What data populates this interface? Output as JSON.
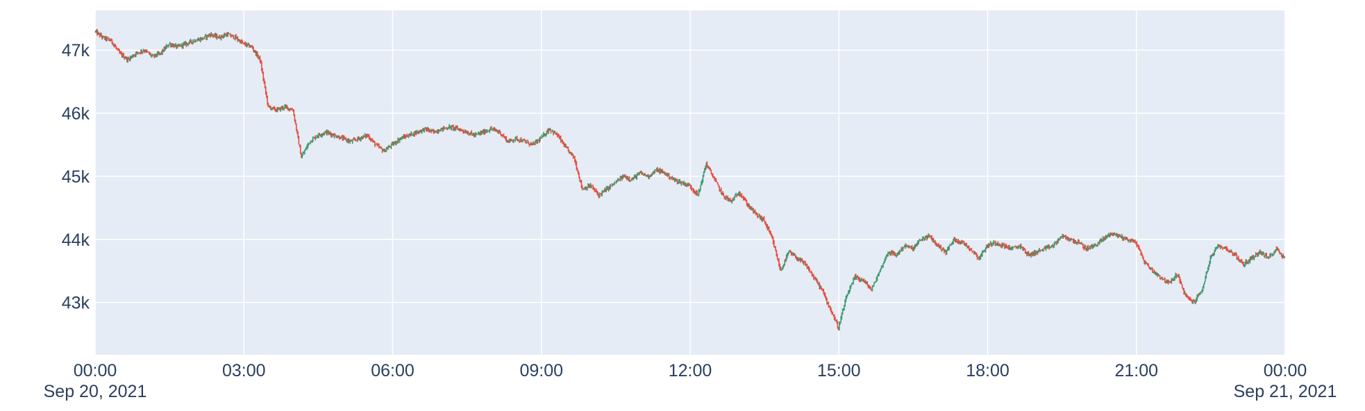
{
  "chart_data": {
    "type": "candlestick",
    "title": "",
    "xlabel": "",
    "ylabel": "",
    "x_range": [
      "2021-09-20 00:00",
      "2021-09-21 00:00"
    ],
    "y_range": [
      42170,
      47630
    ],
    "x_ticks": [
      {
        "time": "2021-09-20 00:00",
        "label": "00:00",
        "sublabel": "Sep 20, 2021"
      },
      {
        "time": "2021-09-20 03:00",
        "label": "03:00",
        "sublabel": ""
      },
      {
        "time": "2021-09-20 06:00",
        "label": "06:00",
        "sublabel": ""
      },
      {
        "time": "2021-09-20 09:00",
        "label": "09:00",
        "sublabel": ""
      },
      {
        "time": "2021-09-20 12:00",
        "label": "12:00",
        "sublabel": ""
      },
      {
        "time": "2021-09-20 15:00",
        "label": "15:00",
        "sublabel": ""
      },
      {
        "time": "2021-09-20 18:00",
        "label": "18:00",
        "sublabel": ""
      },
      {
        "time": "2021-09-20 21:00",
        "label": "21:00",
        "sublabel": ""
      },
      {
        "time": "2021-09-21 00:00",
        "label": "00:00",
        "sublabel": "Sep 21, 2021"
      }
    ],
    "y_ticks": [
      {
        "value": 43000,
        "label": "43k"
      },
      {
        "value": 44000,
        "label": "44k"
      },
      {
        "value": 45000,
        "label": "45k"
      },
      {
        "value": 46000,
        "label": "46k"
      },
      {
        "value": 47000,
        "label": "47k"
      }
    ],
    "grid": true,
    "colors": {
      "increasing": "#3d9970",
      "decreasing": "#e74c3c",
      "plot_bg": "#e5ecf6",
      "grid": "#ffffff",
      "text": "#2a3f5f"
    },
    "price_path": [
      [
        "00:00",
        47300
      ],
      [
        "00:10",
        47200
      ],
      [
        "00:20",
        47150
      ],
      [
        "00:30",
        46950
      ],
      [
        "00:40",
        46850
      ],
      [
        "00:50",
        46950
      ],
      [
        "01:00",
        47000
      ],
      [
        "01:10",
        46900
      ],
      [
        "01:20",
        46950
      ],
      [
        "01:30",
        47100
      ],
      [
        "01:40",
        47050
      ],
      [
        "01:50",
        47100
      ],
      [
        "02:00",
        47150
      ],
      [
        "02:10",
        47180
      ],
      [
        "02:20",
        47250
      ],
      [
        "02:30",
        47200
      ],
      [
        "02:40",
        47250
      ],
      [
        "02:50",
        47200
      ],
      [
        "03:00",
        47100
      ],
      [
        "03:10",
        47050
      ],
      [
        "03:20",
        46850
      ],
      [
        "03:30",
        46100
      ],
      [
        "03:40",
        46050
      ],
      [
        "03:50",
        46100
      ],
      [
        "04:00",
        46050
      ],
      [
        "04:10",
        45300
      ],
      [
        "04:20",
        45550
      ],
      [
        "04:30",
        45650
      ],
      [
        "04:40",
        45700
      ],
      [
        "04:50",
        45650
      ],
      [
        "05:00",
        45600
      ],
      [
        "05:10",
        45550
      ],
      [
        "05:20",
        45600
      ],
      [
        "05:30",
        45650
      ],
      [
        "05:40",
        45500
      ],
      [
        "05:50",
        45400
      ],
      [
        "06:00",
        45500
      ],
      [
        "06:10",
        45600
      ],
      [
        "06:20",
        45650
      ],
      [
        "06:30",
        45700
      ],
      [
        "06:40",
        45750
      ],
      [
        "06:50",
        45700
      ],
      [
        "07:00",
        45750
      ],
      [
        "07:10",
        45780
      ],
      [
        "07:20",
        45750
      ],
      [
        "07:30",
        45700
      ],
      [
        "07:40",
        45650
      ],
      [
        "07:50",
        45700
      ],
      [
        "08:00",
        45750
      ],
      [
        "08:10",
        45700
      ],
      [
        "08:20",
        45550
      ],
      [
        "08:30",
        45600
      ],
      [
        "08:40",
        45550
      ],
      [
        "08:50",
        45500
      ],
      [
        "09:00",
        45600
      ],
      [
        "09:10",
        45750
      ],
      [
        "09:20",
        45650
      ],
      [
        "09:30",
        45450
      ],
      [
        "09:40",
        45300
      ],
      [
        "09:50",
        44800
      ],
      [
        "10:00",
        44850
      ],
      [
        "10:10",
        44700
      ],
      [
        "10:20",
        44800
      ],
      [
        "10:30",
        44900
      ],
      [
        "10:40",
        45000
      ],
      [
        "10:50",
        44950
      ],
      [
        "11:00",
        45050
      ],
      [
        "11:10",
        45000
      ],
      [
        "11:20",
        45100
      ],
      [
        "11:30",
        45050
      ],
      [
        "11:40",
        44950
      ],
      [
        "11:50",
        44900
      ],
      [
        "12:00",
        44850
      ],
      [
        "12:10",
        44700
      ],
      [
        "12:20",
        45200
      ],
      [
        "12:30",
        44950
      ],
      [
        "12:40",
        44700
      ],
      [
        "12:50",
        44600
      ],
      [
        "13:00",
        44750
      ],
      [
        "13:10",
        44550
      ],
      [
        "13:20",
        44400
      ],
      [
        "13:30",
        44300
      ],
      [
        "13:40",
        44000
      ],
      [
        "13:50",
        43500
      ],
      [
        "14:00",
        43800
      ],
      [
        "14:10",
        43700
      ],
      [
        "14:20",
        43600
      ],
      [
        "14:30",
        43400
      ],
      [
        "14:40",
        43200
      ],
      [
        "14:50",
        42900
      ],
      [
        "15:00",
        42600
      ],
      [
        "15:10",
        43100
      ],
      [
        "15:20",
        43400
      ],
      [
        "15:30",
        43350
      ],
      [
        "15:40",
        43200
      ],
      [
        "15:50",
        43500
      ],
      [
        "16:00",
        43800
      ],
      [
        "16:10",
        43750
      ],
      [
        "16:20",
        43900
      ],
      [
        "16:30",
        43850
      ],
      [
        "16:40",
        44000
      ],
      [
        "16:50",
        44050
      ],
      [
        "17:00",
        43900
      ],
      [
        "17:10",
        43800
      ],
      [
        "17:20",
        44000
      ],
      [
        "17:30",
        43950
      ],
      [
        "17:40",
        43850
      ],
      [
        "17:50",
        43700
      ],
      [
        "18:00",
        43900
      ],
      [
        "18:10",
        43950
      ],
      [
        "18:20",
        43900
      ],
      [
        "18:30",
        43850
      ],
      [
        "18:40",
        43900
      ],
      [
        "18:50",
        43750
      ],
      [
        "19:00",
        43800
      ],
      [
        "19:10",
        43850
      ],
      [
        "19:20",
        43900
      ],
      [
        "19:30",
        44050
      ],
      [
        "19:40",
        44000
      ],
      [
        "19:50",
        43950
      ],
      [
        "20:00",
        43850
      ],
      [
        "20:10",
        43900
      ],
      [
        "20:20",
        44000
      ],
      [
        "20:30",
        44100
      ],
      [
        "20:40",
        44050
      ],
      [
        "20:50",
        44000
      ],
      [
        "21:00",
        43950
      ],
      [
        "21:10",
        43650
      ],
      [
        "21:20",
        43500
      ],
      [
        "21:30",
        43400
      ],
      [
        "21:40",
        43300
      ],
      [
        "21:50",
        43450
      ],
      [
        "22:00",
        43100
      ],
      [
        "22:10",
        43000
      ],
      [
        "22:20",
        43200
      ],
      [
        "22:30",
        43700
      ],
      [
        "22:40",
        43900
      ],
      [
        "22:50",
        43850
      ],
      [
        "23:00",
        43750
      ],
      [
        "23:10",
        43600
      ],
      [
        "23:20",
        43700
      ],
      [
        "23:30",
        43800
      ],
      [
        "23:40",
        43700
      ],
      [
        "23:50",
        43850
      ],
      [
        "00:00",
        43700
      ]
    ]
  }
}
